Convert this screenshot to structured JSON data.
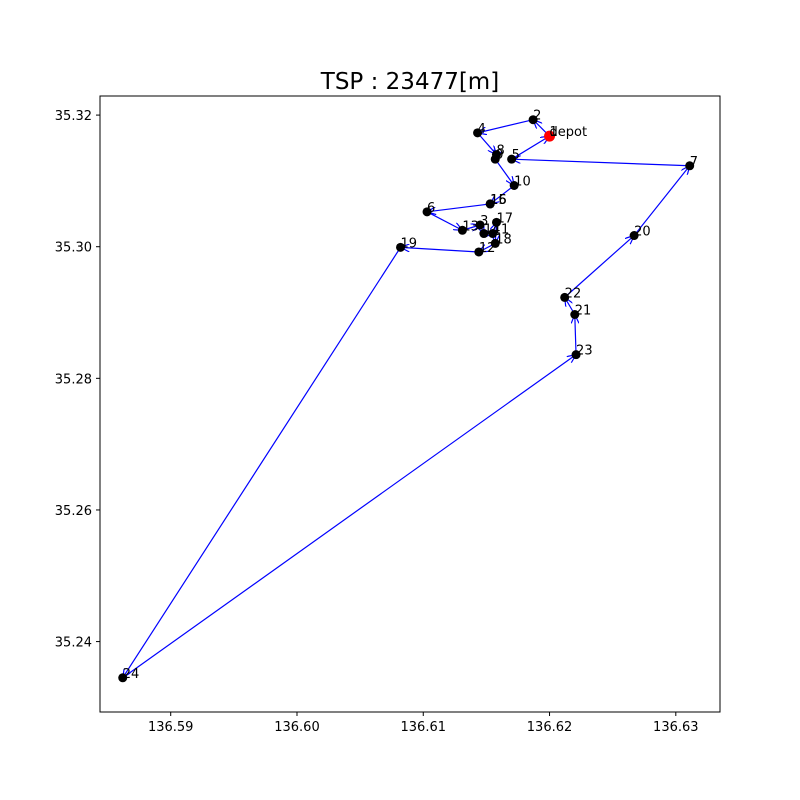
{
  "chart_data": {
    "type": "scatter",
    "title": "TSP : 23477[m]",
    "xlabel": "",
    "ylabel": "",
    "xlim": [
      136.5844,
      136.6335
    ],
    "ylim": [
      35.2293,
      35.3229
    ],
    "x_ticks": [
      136.59,
      136.6,
      136.61,
      136.62,
      136.63
    ],
    "x_tick_labels": [
      "136.59",
      "136.60",
      "136.61",
      "136.62",
      "136.63"
    ],
    "y_ticks": [
      35.24,
      35.26,
      35.28,
      35.3,
      35.32
    ],
    "y_tick_labels": [
      "35.24",
      "35.26",
      "35.28",
      "35.30",
      "35.32"
    ],
    "grid": false,
    "legend": false,
    "colors": {
      "node": "#000000",
      "depot": "#ff0000",
      "route": "#0000ff"
    },
    "depot": {
      "label": "depot",
      "x": 136.62,
      "y": 35.3168
    },
    "nodes": [
      {
        "label": "1",
        "x": 136.62,
        "y": 35.3168
      },
      {
        "label": "2",
        "x": 136.6187,
        "y": 35.3193
      },
      {
        "label": "3",
        "x": 136.6145,
        "y": 35.3033
      },
      {
        "label": "4",
        "x": 136.6143,
        "y": 35.3173
      },
      {
        "label": "5",
        "x": 136.617,
        "y": 35.3133
      },
      {
        "label": "6",
        "x": 136.6103,
        "y": 35.3053
      },
      {
        "label": "7",
        "x": 136.6311,
        "y": 35.3123
      },
      {
        "label": "8",
        "x": 136.6158,
        "y": 35.314
      },
      {
        "label": "9",
        "x": 136.6157,
        "y": 35.3133
      },
      {
        "label": "10",
        "x": 136.6172,
        "y": 35.3093
      },
      {
        "label": "11",
        "x": 136.6155,
        "y": 35.302
      },
      {
        "label": "12",
        "x": 136.6144,
        "y": 35.2992
      },
      {
        "label": "13",
        "x": 136.6131,
        "y": 35.3025
      },
      {
        "label": "14",
        "x": 136.6148,
        "y": 35.302
      },
      {
        "label": "15",
        "x": 136.6153,
        "y": 35.3065
      },
      {
        "label": "16",
        "x": 136.6153,
        "y": 35.3065
      },
      {
        "label": "17",
        "x": 136.6158,
        "y": 35.3037
      },
      {
        "label": "18",
        "x": 136.6157,
        "y": 35.3005
      },
      {
        "label": "19",
        "x": 136.6082,
        "y": 35.2999
      },
      {
        "label": "20",
        "x": 136.6267,
        "y": 35.3017
      },
      {
        "label": "21",
        "x": 136.622,
        "y": 35.2897
      },
      {
        "label": "22",
        "x": 136.6212,
        "y": 35.2923
      },
      {
        "label": "23",
        "x": 136.6221,
        "y": 35.2836
      },
      {
        "label": "24",
        "x": 136.5862,
        "y": 35.2345
      }
    ],
    "route": [
      "1",
      "depot",
      "2",
      "4",
      "8",
      "9",
      "10",
      "16",
      "15",
      "6",
      "13",
      "3",
      "14",
      "11",
      "17",
      "18",
      "12",
      "19",
      "24",
      "23",
      "21",
      "22",
      "20",
      "7",
      "5",
      "1"
    ]
  }
}
